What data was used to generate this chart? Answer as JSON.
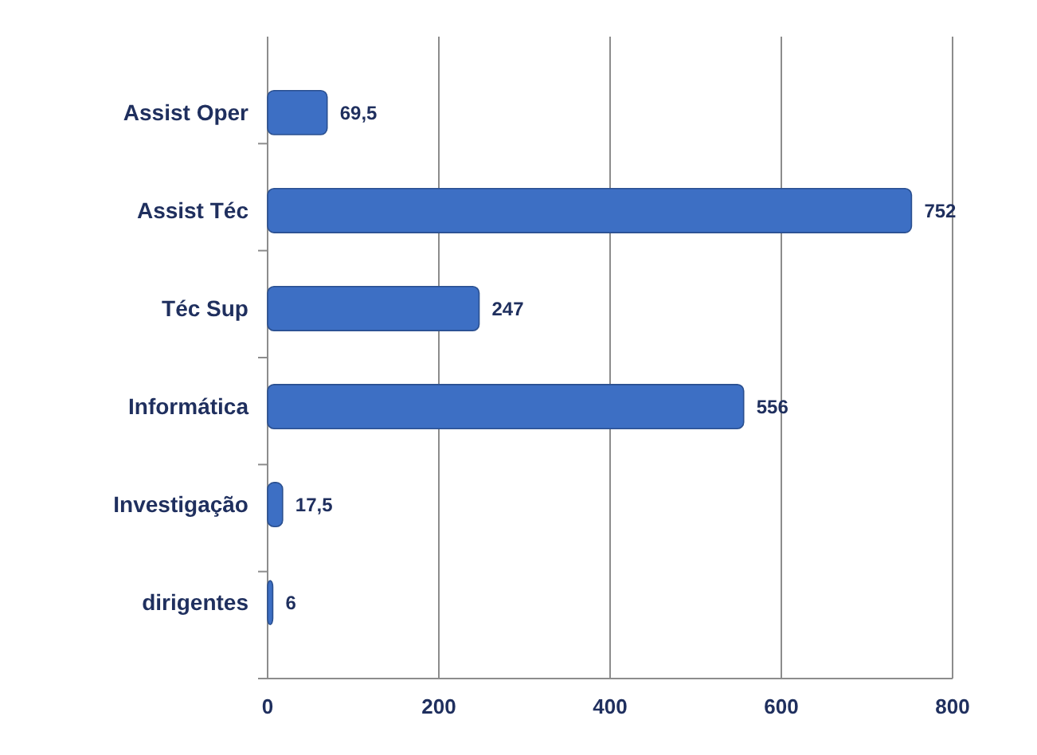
{
  "chart_data": {
    "type": "bar",
    "orientation": "horizontal",
    "categories": [
      "Assist Oper",
      "Assist Téc",
      "Téc Sup",
      "Informática",
      "Investigação",
      "dirigentes"
    ],
    "values": [
      69.5,
      752,
      247,
      556,
      17.5,
      6
    ],
    "value_labels": [
      "69,5",
      "752",
      "247",
      "556",
      "17,5",
      "6"
    ],
    "color": "#3d6fc4",
    "xlim": [
      0,
      800
    ],
    "xticks": [
      0,
      200,
      400,
      600,
      800
    ],
    "grid": "x"
  }
}
